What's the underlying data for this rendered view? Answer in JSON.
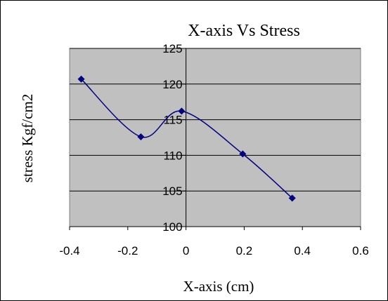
{
  "chart_data": {
    "type": "scatter",
    "title": "X-axis Vs Stress",
    "xlabel": "X-axis (cm)",
    "ylabel": "stress Kgf/cm2",
    "xlim": [
      -0.4,
      0.6
    ],
    "ylim": [
      100,
      125
    ],
    "x_ticks": [
      "-0.4",
      "-0.2",
      "0",
      "0.2",
      "0.4",
      "0.6"
    ],
    "y_ticks": [
      "100",
      "105",
      "110",
      "115",
      "120",
      "125"
    ],
    "grid": true,
    "legend": "none",
    "series": [
      {
        "line": "smoothed",
        "marker": "diamond",
        "x": [
          -0.36,
          -0.155,
          -0.015,
          0.195,
          0.365
        ],
        "y": [
          120.7,
          112.6,
          116.2,
          110.2,
          104.0
        ]
      }
    ],
    "colors": {
      "plot_background": "#c0c0c0",
      "series": "#000080",
      "grid": "#000000"
    }
  }
}
